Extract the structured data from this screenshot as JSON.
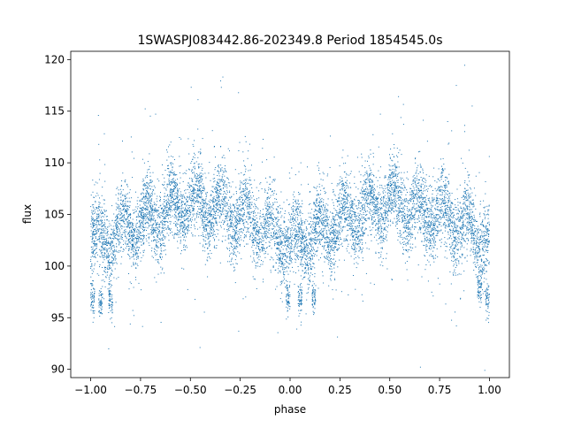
{
  "chart_data": {
    "type": "scatter",
    "title": "1SWASPJ083442.86-202349.8 Period 1854545.0s",
    "xlabel": "phase",
    "ylabel": "flux",
    "xlim": [
      -1.1,
      1.1
    ],
    "ylim": [
      89.2,
      120.8
    ],
    "grid": false,
    "marker_color": "#1f77b4",
    "xticks": [
      -1.0,
      -0.75,
      -0.5,
      -0.25,
      0.0,
      0.25,
      0.5,
      0.75,
      1.0
    ],
    "xtick_labels": [
      "−1.00",
      "−0.75",
      "−0.50",
      "−0.25",
      "0.00",
      "0.25",
      "0.50",
      "0.75",
      "1.00"
    ],
    "yticks": [
      90,
      95,
      100,
      105,
      110,
      115,
      120
    ],
    "ytick_labels": [
      "90",
      "95",
      "100",
      "105",
      "110",
      "115",
      "120"
    ],
    "x_range": [
      -1.0,
      1.0
    ],
    "trend": {
      "phase": [
        0.0,
        0.05,
        0.1,
        0.15,
        0.2,
        0.25,
        0.3,
        0.35,
        0.4,
        0.45,
        0.5,
        0.55,
        0.6,
        0.65,
        0.7,
        0.75,
        0.8,
        0.85,
        0.9,
        0.95,
        1.0
      ],
      "flux": [
        102.0,
        102.6,
        103.0,
        103.4,
        103.8,
        104.2,
        104.6,
        105.0,
        105.5,
        106.0,
        106.2,
        106.0,
        105.6,
        105.5,
        105.3,
        105.0,
        104.6,
        104.0,
        103.5,
        103.2,
        102.3
      ]
    },
    "scatter_sd": 1.8,
    "dips": [
      {
        "phase": -0.99,
        "flux": 96.8
      },
      {
        "phase": -0.9,
        "flux": 96.7
      },
      {
        "phase": -0.95,
        "flux": 96.5
      },
      {
        "phase": -0.01,
        "flux": 97.0
      },
      {
        "phase": 0.05,
        "flux": 96.6
      },
      {
        "phase": 0.12,
        "flux": 97.0
      },
      {
        "phase": 0.95,
        "flux": 97.5
      },
      {
        "phase": 0.99,
        "flux": 96.8
      }
    ],
    "n_points": 9000
  }
}
